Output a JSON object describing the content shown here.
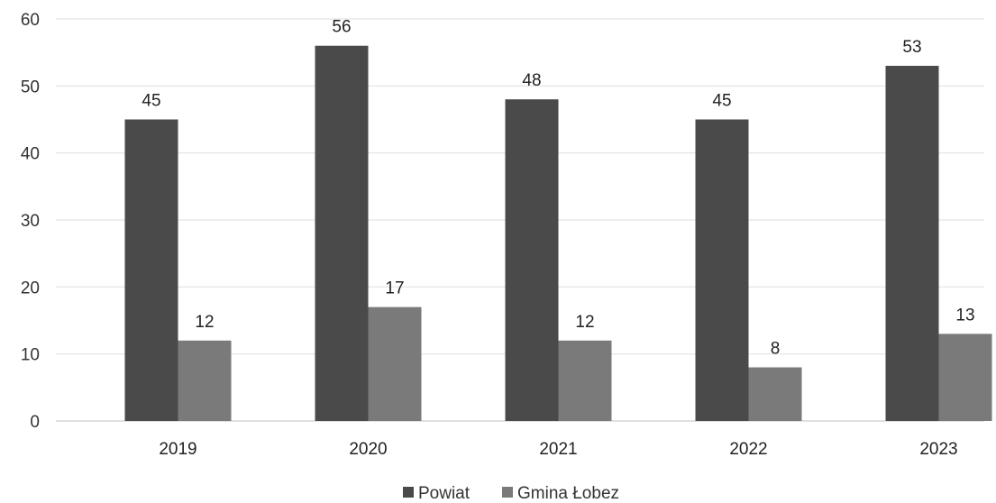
{
  "chart_data": {
    "type": "bar",
    "title": "",
    "xlabel": "",
    "ylabel": "",
    "categories": [
      "2019",
      "2020",
      "2021",
      "2022",
      "2023"
    ],
    "series": [
      {
        "name": "Powiat",
        "color": "#4a4a4a",
        "values": [
          45,
          56,
          48,
          45,
          53
        ]
      },
      {
        "name": "Gmina Łobez",
        "color": "#7a7a7a",
        "values": [
          12,
          17,
          12,
          8,
          13
        ]
      }
    ],
    "ylim": [
      0,
      60
    ],
    "yticks": [
      0,
      10,
      20,
      30,
      40,
      50,
      60
    ],
    "grid": true,
    "data_labels": true,
    "legend": "bottom-center"
  }
}
